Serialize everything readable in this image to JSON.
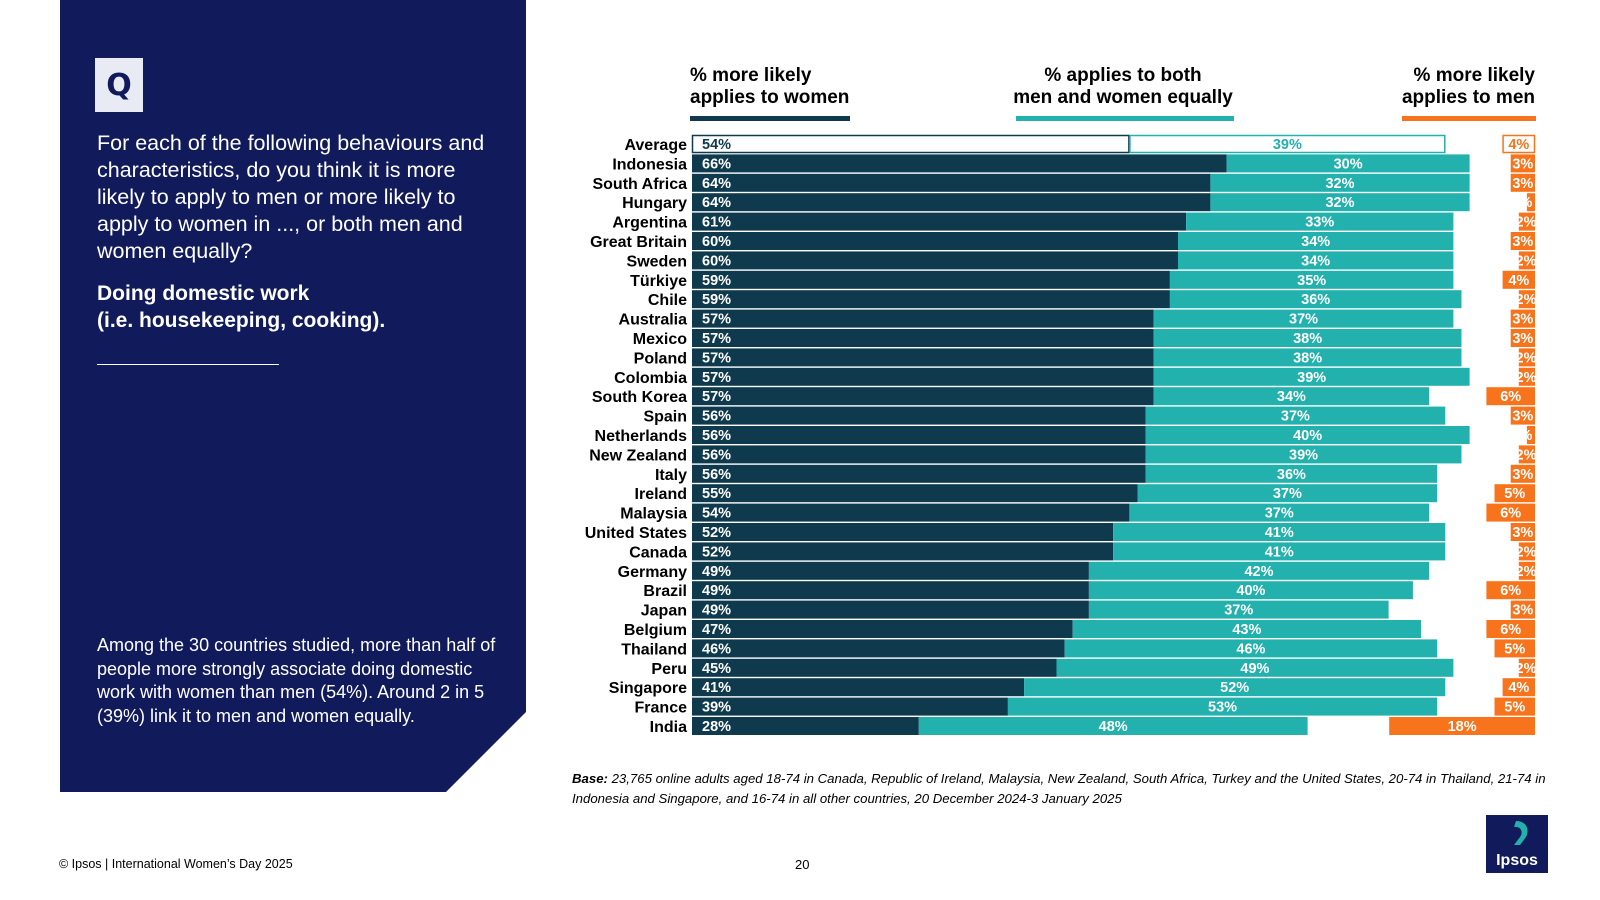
{
  "panel": {
    "badge": "Q",
    "question": "For each of the following behaviours and characteristics, do you think it is more likely to apply to men or more likely to apply to women in ..., or both men and women equally?",
    "topic": "Doing domestic work\n(i.e. housekeeping, cooking).",
    "summary": "Among the 30 countries studied, more than half of people more strongly associate doing domestic work with women than men (54%). Around 2 in 5 (39%) link it to men and women equally."
  },
  "legend": {
    "women": "% more likely\napplies to women",
    "both": "% applies to both\nmen and women equally",
    "men": "% more likely\napplies to men"
  },
  "colors": {
    "panel_bg": "#111b5c",
    "women": "#0f3a4e",
    "both": "#23b1ad",
    "men": "#f7741c",
    "legend_women": "#0f3a4e",
    "legend_both": "#23b1ad",
    "legend_men": "#f7741c"
  },
  "chart_data": {
    "type": "bar",
    "orientation": "horizontal",
    "stacked": true,
    "layout_note": "women bars anchored left, men bars anchored right, equal bars follow women bars",
    "xlim": [
      0,
      100
    ],
    "series": [
      {
        "name": "% more likely applies to women",
        "values": [
          54,
          66,
          64,
          64,
          61,
          60,
          60,
          59,
          59,
          57,
          57,
          57,
          57,
          57,
          56,
          56,
          56,
          56,
          55,
          54,
          52,
          52,
          49,
          49,
          49,
          47,
          46,
          45,
          41,
          39,
          28
        ]
      },
      {
        "name": "% applies to both men and women equally",
        "values": [
          39,
          30,
          32,
          32,
          33,
          34,
          34,
          35,
          36,
          37,
          38,
          38,
          39,
          34,
          37,
          40,
          39,
          36,
          37,
          37,
          41,
          41,
          42,
          40,
          37,
          43,
          46,
          49,
          52,
          53,
          48
        ]
      },
      {
        "name": "% more likely applies to men",
        "values": [
          4,
          3,
          3,
          1,
          2,
          3,
          2,
          4,
          2,
          3,
          3,
          2,
          2,
          6,
          3,
          1,
          2,
          3,
          5,
          6,
          3,
          2,
          2,
          6,
          3,
          6,
          5,
          2,
          4,
          5,
          18
        ]
      }
    ],
    "value_labels": {
      "women": [
        "54%",
        "66%",
        "64%",
        "64%",
        "61%",
        "60%",
        "60%",
        "59%",
        "59%",
        "57%",
        "57%",
        "57%",
        "57%",
        "57%",
        "56%",
        "56%",
        "56%",
        "56%",
        "55%",
        "54%",
        "52%",
        "52%",
        "49%",
        "49%",
        "49%",
        "47%",
        "46%",
        "45%",
        "41%",
        "39%",
        "28%"
      ],
      "both": [
        "39%",
        "30%",
        "32%",
        "32%",
        "33%",
        "34%",
        "34%",
        "35%",
        "36%",
        "37%",
        "38%",
        "38%",
        "39%",
        "34%",
        "37%",
        "40%",
        "39%",
        "36%",
        "37%",
        "37%",
        "41%",
        "41%",
        "42%",
        "40%",
        "37%",
        "43%",
        "46%",
        "49%",
        "52%",
        "53%",
        "48%"
      ],
      "men": [
        "4%",
        "3%",
        "3%",
        "%",
        "2%",
        "3%",
        "2%",
        "4%",
        "2%",
        "3%",
        "3%",
        "2%",
        "2%",
        "6%",
        "3%",
        "%",
        "2%",
        "3%",
        "5%",
        "6%",
        "3%",
        "2%",
        "2%",
        "6%",
        "3%",
        "6%",
        "5%",
        "2%",
        "4%",
        "5%",
        "18%"
      ]
    },
    "categories": [
      "Average",
      "Indonesia",
      "South Africa",
      "Hungary",
      "Argentina",
      "Great Britain",
      "Sweden",
      "Türkiye",
      "Chile",
      "Australia",
      "Mexico",
      "Poland",
      "Colombia",
      "South Korea",
      "Spain",
      "Netherlands",
      "New Zealand",
      "Italy",
      "Ireland",
      "Malaysia",
      "United States",
      "Canada",
      "Germany",
      "Brazil",
      "Japan",
      "Belgium",
      "Thailand",
      "Peru",
      "Singapore",
      "France",
      "India"
    ]
  },
  "base_note": {
    "label": "Base:",
    "text": "23,765 online adults aged 18-74 in Canada, Republic of Ireland, Malaysia, New Zealand, South Africa, Turkey and the United States, 20-74 in Thailand, 21-74 in Indonesia and Singapore, and 16-74 in all other countries, 20 December 2024-3 January 2025"
  },
  "footer": {
    "copyright": "© Ipsos | International Women’s Day 2025",
    "page": "20"
  },
  "logo": {
    "text": "Ipsos",
    "icon": "ipsos-logo-icon"
  }
}
